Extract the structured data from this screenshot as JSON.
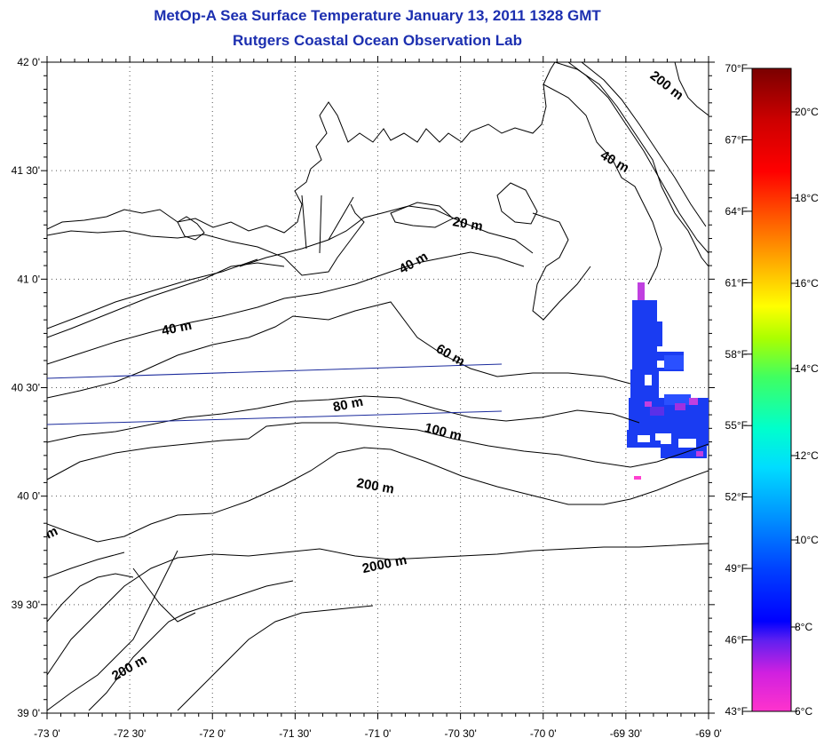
{
  "title": {
    "line1": "MetOp-A Sea Surface Temperature January 13, 2011 1328 GMT",
    "line2": "Rutgers Coastal Ocean Observation Lab"
  },
  "map": {
    "lat_labels": [
      "42 0'",
      "41 30'",
      "41 0'",
      "40 30'",
      "40 0'",
      "39 30'",
      "39 0'"
    ],
    "lon_labels": [
      "-73 0'",
      "-72 30'",
      "-72 0'",
      "-71 30'",
      "-71 0'",
      "-70 30'",
      "-70 0'",
      "-69 30'",
      "-69 0'"
    ],
    "contour_labels": [
      {
        "text": "200 m"
      },
      {
        "text": "40 m"
      },
      {
        "text": "20 m"
      },
      {
        "text": "40 m"
      },
      {
        "text": "40 m"
      },
      {
        "text": "60 m"
      },
      {
        "text": "80 m"
      },
      {
        "text": "100 m"
      },
      {
        "text": "200 m"
      },
      {
        "text": "2000 m"
      },
      {
        "text": "200 m"
      },
      {
        "text": "m"
      }
    ],
    "colors": {
      "land_contour": "#000000",
      "track_line": "#1a2a9c",
      "title": "#1c2fb0"
    }
  },
  "colorbar": {
    "f_labels": [
      "70°F",
      "67°F",
      "64°F",
      "61°F",
      "58°F",
      "55°F",
      "52°F",
      "49°F",
      "46°F",
      "43°F"
    ],
    "c_labels": [
      "20°C",
      "18°C",
      "16°C",
      "14°C",
      "12°C",
      "10°C",
      "8°C",
      "6°C"
    ]
  }
}
